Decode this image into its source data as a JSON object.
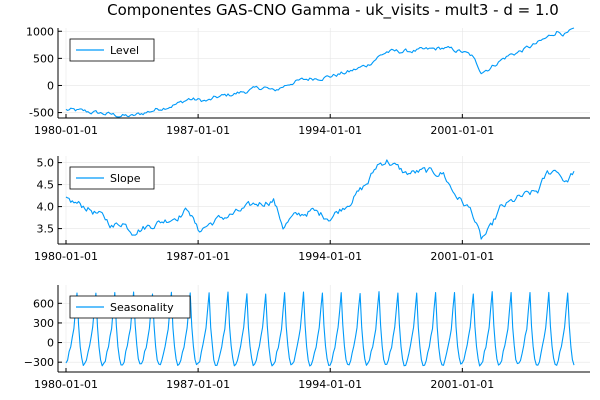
{
  "title": "Componentes GAS-CNO Gamma - uk_visits - mult3 - d = 1.0",
  "colors": {
    "series": "#009af9",
    "grid": "#e6e6e6",
    "axis": "#000000"
  },
  "chart_data": [
    {
      "type": "line",
      "legend_position": "top-left",
      "grid": true,
      "x_start": "1980-01",
      "x_end": "2006-12",
      "frequency": "monthly",
      "x_tick_labels": [
        "1980-01-01",
        "1987-01-01",
        "1994-01-01",
        "2001-01-01"
      ],
      "ylim": [
        -600,
        1060
      ],
      "y_ticks": [
        -500,
        0,
        500,
        1000
      ],
      "y_tick_labels": [
        "-500",
        "0",
        "500",
        "1000"
      ],
      "series": [
        {
          "name": "Level",
          "knots": [
            [
              "1980-01",
              -450
            ],
            [
              "1981-01",
              -480
            ],
            [
              "1982-01",
              -520
            ],
            [
              "1983-01",
              -560
            ],
            [
              "1983-07",
              -570
            ],
            [
              "1984-01",
              -520
            ],
            [
              "1985-01",
              -420
            ],
            [
              "1986-01",
              -330
            ],
            [
              "1986-07",
              -250
            ],
            [
              "1987-01",
              -270
            ],
            [
              "1987-07",
              -290
            ],
            [
              "1988-01",
              -220
            ],
            [
              "1989-01",
              -150
            ],
            [
              "1990-01",
              -70
            ],
            [
              "1990-07",
              -30
            ],
            [
              "1991-01",
              -110
            ],
            [
              "1991-07",
              -20
            ],
            [
              "1992-01",
              60
            ],
            [
              "1993-01",
              130
            ],
            [
              "1994-01",
              170
            ],
            [
              "1995-01",
              250
            ],
            [
              "1996-01",
              380
            ],
            [
              "1996-07",
              520
            ],
            [
              "1997-01",
              620
            ],
            [
              "1998-01",
              630
            ],
            [
              "1999-01",
              650
            ],
            [
              "2000-01",
              690
            ],
            [
              "2001-01",
              620
            ],
            [
              "2001-07",
              540
            ],
            [
              "2002-01",
              260
            ],
            [
              "2002-07",
              330
            ],
            [
              "2003-01",
              460
            ],
            [
              "2003-07",
              560
            ],
            [
              "2004-01",
              620
            ],
            [
              "2005-01",
              780
            ],
            [
              "2005-07",
              880
            ],
            [
              "2006-01",
              1000
            ],
            [
              "2006-07",
              950
            ],
            [
              "2006-12",
              1020
            ]
          ],
          "noise": 35
        }
      ]
    },
    {
      "type": "line",
      "legend_position": "top-left",
      "grid": true,
      "x_start": "1980-01",
      "x_end": "2006-12",
      "frequency": "monthly",
      "x_tick_labels": [
        "1980-01-01",
        "1987-01-01",
        "1994-01-01",
        "2001-01-01"
      ],
      "ylim": [
        3.15,
        5.15
      ],
      "y_ticks": [
        3.5,
        4.0,
        4.5,
        5.0
      ],
      "y_tick_labels": [
        "3.5",
        "4.0",
        "4.5",
        "5.0"
      ],
      "series": [
        {
          "name": "Slope",
          "knots": [
            [
              "1980-01",
              4.15
            ],
            [
              "1981-01",
              4.0
            ],
            [
              "1982-01",
              3.75
            ],
            [
              "1982-07",
              3.55
            ],
            [
              "1983-01",
              3.65
            ],
            [
              "1983-07",
              3.45
            ],
            [
              "1984-01",
              3.5
            ],
            [
              "1985-01",
              3.65
            ],
            [
              "1986-01",
              3.8
            ],
            [
              "1986-07",
              3.95
            ],
            [
              "1987-01",
              3.45
            ],
            [
              "1988-01",
              3.7
            ],
            [
              "1989-01",
              3.85
            ],
            [
              "1990-01",
              4.05
            ],
            [
              "1991-01",
              4.15
            ],
            [
              "1991-07",
              3.55
            ],
            [
              "1992-01",
              3.75
            ],
            [
              "1993-01",
              3.9
            ],
            [
              "1994-01",
              3.75
            ],
            [
              "1995-01",
              4.1
            ],
            [
              "1996-01",
              4.55
            ],
            [
              "1996-07",
              4.95
            ],
            [
              "1997-01",
              5.05
            ],
            [
              "1998-01",
              4.75
            ],
            [
              "1999-01",
              4.8
            ],
            [
              "2000-01",
              4.75
            ],
            [
              "2000-07",
              4.35
            ],
            [
              "2001-01",
              4.1
            ],
            [
              "2001-07",
              3.9
            ],
            [
              "2002-01",
              3.25
            ],
            [
              "2002-07",
              3.5
            ],
            [
              "2003-01",
              3.95
            ],
            [
              "2004-01",
              4.2
            ],
            [
              "2005-01",
              4.35
            ],
            [
              "2005-07",
              4.75
            ],
            [
              "2006-01",
              4.85
            ],
            [
              "2006-07",
              4.55
            ],
            [
              "2006-12",
              4.8
            ]
          ],
          "noise": 0.07
        }
      ]
    },
    {
      "type": "line",
      "legend_position": "top-left",
      "grid": true,
      "x_start": "1980-01",
      "x_end": "2006-12",
      "frequency": "monthly",
      "x_tick_labels": [
        "1980-01-01",
        "1987-01-01",
        "1994-01-01",
        "2001-01-01"
      ],
      "ylim": [
        -450,
        880
      ],
      "y_ticks": [
        -300,
        0,
        300,
        600
      ],
      "y_tick_labels": [
        "−300",
        "0",
        "300",
        "600"
      ],
      "series": [
        {
          "name": "Seasonality",
          "seasonal_pattern": [
            -330,
            -280,
            -150,
            -60,
            90,
            220,
            500,
            760,
            250,
            -50,
            -250,
            -340
          ],
          "noise": 20
        }
      ]
    }
  ]
}
